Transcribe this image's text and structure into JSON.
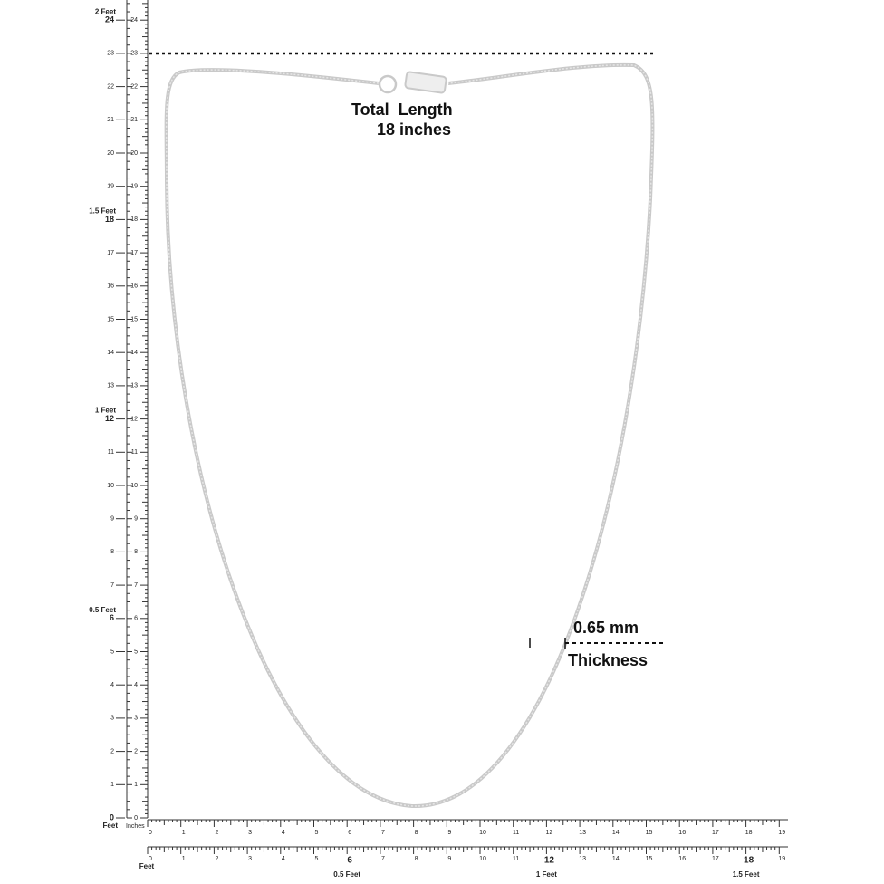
{
  "annotations": {
    "total_length": "Total  Length",
    "length_value": "18 inches",
    "thickness_value": "0.65 mm",
    "thickness_label": "Thickness"
  },
  "left_ruler": {
    "labels": [
      0,
      1,
      2,
      3,
      4,
      5,
      6,
      7,
      8,
      9,
      10,
      11,
      12,
      13,
      14,
      15,
      16,
      17,
      18,
      19,
      20,
      21,
      22,
      23,
      24
    ],
    "feet": [
      {
        "at": 6,
        "label": "0.5 Feet"
      },
      {
        "at": 12,
        "label": "1 Feet"
      },
      {
        "at": 18,
        "label": "1.5 Feet"
      },
      {
        "at": 24,
        "label": "2 Feet"
      }
    ],
    "zero_unit": "Feet"
  },
  "bottom_ruler": {
    "labels": [
      0,
      1,
      2,
      3,
      4,
      5,
      6,
      7,
      8,
      9,
      10,
      11,
      12,
      13,
      14,
      15,
      16,
      17,
      18,
      19
    ],
    "feet_unit": "Feet",
    "inch_unit": "Inches"
  },
  "feet_ruler": {
    "labels": [
      0,
      1,
      2,
      3,
      4,
      5,
      6,
      7,
      8,
      9,
      10,
      11,
      12,
      13,
      14,
      15,
      16,
      17,
      18,
      19
    ],
    "unit": "Feet",
    "feet": [
      {
        "at": 6,
        "label": "0.5 Feet"
      },
      {
        "at": 12,
        "label": "1 Feet"
      },
      {
        "at": 18,
        "label": "1.5 Feet"
      }
    ]
  }
}
